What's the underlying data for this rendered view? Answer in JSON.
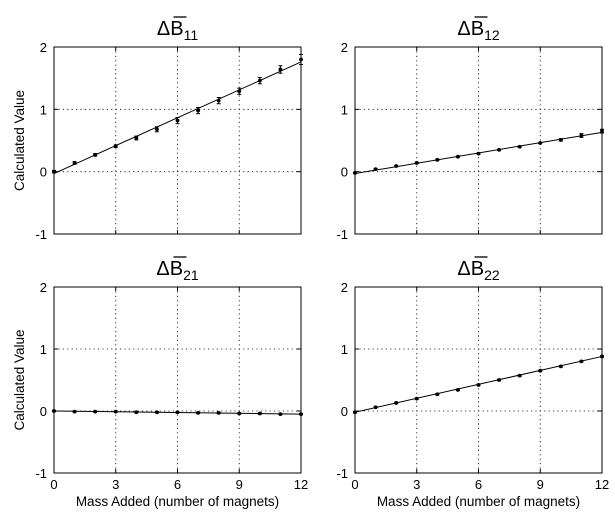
{
  "chart_data": [
    {
      "type": "scatter",
      "title_main": "ΔB",
      "title_sub": "11",
      "ylabel": "Calculated Value",
      "xlabel": "",
      "xlim": [
        0,
        12
      ],
      "ylim": [
        -1,
        2
      ],
      "xticks": [
        0,
        3,
        6,
        9,
        12
      ],
      "yticks": [
        -1,
        0,
        1,
        2
      ],
      "grid": true,
      "fit_line": [
        [
          0,
          -0.03
        ],
        [
          12,
          1.76
        ]
      ],
      "points": [
        {
          "x": 0,
          "y": 0.0,
          "err": 0.02
        },
        {
          "x": 1,
          "y": 0.14,
          "err": 0.02
        },
        {
          "x": 2,
          "y": 0.27,
          "err": 0.02
        },
        {
          "x": 3,
          "y": 0.41,
          "err": 0.02
        },
        {
          "x": 4,
          "y": 0.54,
          "err": 0.03
        },
        {
          "x": 5,
          "y": 0.68,
          "err": 0.04
        },
        {
          "x": 6,
          "y": 0.82,
          "err": 0.05
        },
        {
          "x": 7,
          "y": 0.98,
          "err": 0.05
        },
        {
          "x": 8,
          "y": 1.14,
          "err": 0.05
        },
        {
          "x": 9,
          "y": 1.29,
          "err": 0.05
        },
        {
          "x": 10,
          "y": 1.46,
          "err": 0.05
        },
        {
          "x": 11,
          "y": 1.64,
          "err": 0.06
        },
        {
          "x": 12,
          "y": 1.8,
          "err": 0.08
        }
      ]
    },
    {
      "type": "scatter",
      "title_main": "ΔB",
      "title_sub": "12",
      "ylabel": "",
      "xlabel": "",
      "xlim": [
        0,
        12
      ],
      "ylim": [
        -1,
        2
      ],
      "xticks": [
        0,
        3,
        6,
        9,
        12
      ],
      "yticks": [
        -1,
        0,
        1,
        2
      ],
      "grid": true,
      "fit_line": [
        [
          0,
          -0.03
        ],
        [
          12,
          0.63
        ]
      ],
      "points": [
        {
          "x": 0,
          "y": -0.02,
          "err": 0.01
        },
        {
          "x": 1,
          "y": 0.04,
          "err": 0.01
        },
        {
          "x": 2,
          "y": 0.09,
          "err": 0.01
        },
        {
          "x": 3,
          "y": 0.14,
          "err": 0.01
        },
        {
          "x": 4,
          "y": 0.19,
          "err": 0.01
        },
        {
          "x": 5,
          "y": 0.24,
          "err": 0.01
        },
        {
          "x": 6,
          "y": 0.29,
          "err": 0.01
        },
        {
          "x": 7,
          "y": 0.35,
          "err": 0.01
        },
        {
          "x": 8,
          "y": 0.4,
          "err": 0.01
        },
        {
          "x": 9,
          "y": 0.46,
          "err": 0.01
        },
        {
          "x": 10,
          "y": 0.51,
          "err": 0.02
        },
        {
          "x": 11,
          "y": 0.58,
          "err": 0.03
        },
        {
          "x": 12,
          "y": 0.65,
          "err": 0.03
        }
      ]
    },
    {
      "type": "scatter",
      "title_main": "ΔB",
      "title_sub": "21",
      "ylabel": "Calculated Value",
      "xlabel": "Mass Added (number of magnets)",
      "xlim": [
        0,
        12
      ],
      "ylim": [
        -1,
        2
      ],
      "xticks": [
        0,
        3,
        6,
        9,
        12
      ],
      "yticks": [
        -1,
        0,
        1,
        2
      ],
      "grid": true,
      "fit_line": [
        [
          0,
          0.0
        ],
        [
          12,
          -0.05
        ]
      ],
      "points": [
        {
          "x": 0,
          "y": 0.0,
          "err": 0.01
        },
        {
          "x": 1,
          "y": -0.01,
          "err": 0.01
        },
        {
          "x": 2,
          "y": -0.01,
          "err": 0.01
        },
        {
          "x": 3,
          "y": -0.01,
          "err": 0.01
        },
        {
          "x": 4,
          "y": -0.02,
          "err": 0.01
        },
        {
          "x": 5,
          "y": -0.02,
          "err": 0.01
        },
        {
          "x": 6,
          "y": -0.02,
          "err": 0.01
        },
        {
          "x": 7,
          "y": -0.03,
          "err": 0.01
        },
        {
          "x": 8,
          "y": -0.03,
          "err": 0.01
        },
        {
          "x": 9,
          "y": -0.04,
          "err": 0.01
        },
        {
          "x": 10,
          "y": -0.04,
          "err": 0.01
        },
        {
          "x": 11,
          "y": -0.05,
          "err": 0.01
        },
        {
          "x": 12,
          "y": -0.05,
          "err": 0.01
        }
      ]
    },
    {
      "type": "scatter",
      "title_main": "ΔB",
      "title_sub": "22",
      "ylabel": "",
      "xlabel": "Mass Added (number of magnets)",
      "xlim": [
        0,
        12
      ],
      "ylim": [
        -1,
        2
      ],
      "xticks": [
        0,
        3,
        6,
        9,
        12
      ],
      "yticks": [
        -1,
        0,
        1,
        2
      ],
      "grid": true,
      "fit_line": [
        [
          0,
          -0.02
        ],
        [
          12,
          0.88
        ]
      ],
      "points": [
        {
          "x": 0,
          "y": -0.02,
          "err": 0.01
        },
        {
          "x": 1,
          "y": 0.06,
          "err": 0.01
        },
        {
          "x": 2,
          "y": 0.13,
          "err": 0.01
        },
        {
          "x": 3,
          "y": 0.2,
          "err": 0.01
        },
        {
          "x": 4,
          "y": 0.27,
          "err": 0.01
        },
        {
          "x": 5,
          "y": 0.34,
          "err": 0.01
        },
        {
          "x": 6,
          "y": 0.42,
          "err": 0.01
        },
        {
          "x": 7,
          "y": 0.5,
          "err": 0.01
        },
        {
          "x": 8,
          "y": 0.57,
          "err": 0.01
        },
        {
          "x": 9,
          "y": 0.65,
          "err": 0.01
        },
        {
          "x": 10,
          "y": 0.72,
          "err": 0.01
        },
        {
          "x": 11,
          "y": 0.8,
          "err": 0.01
        },
        {
          "x": 12,
          "y": 0.88,
          "err": 0.01
        }
      ]
    }
  ]
}
